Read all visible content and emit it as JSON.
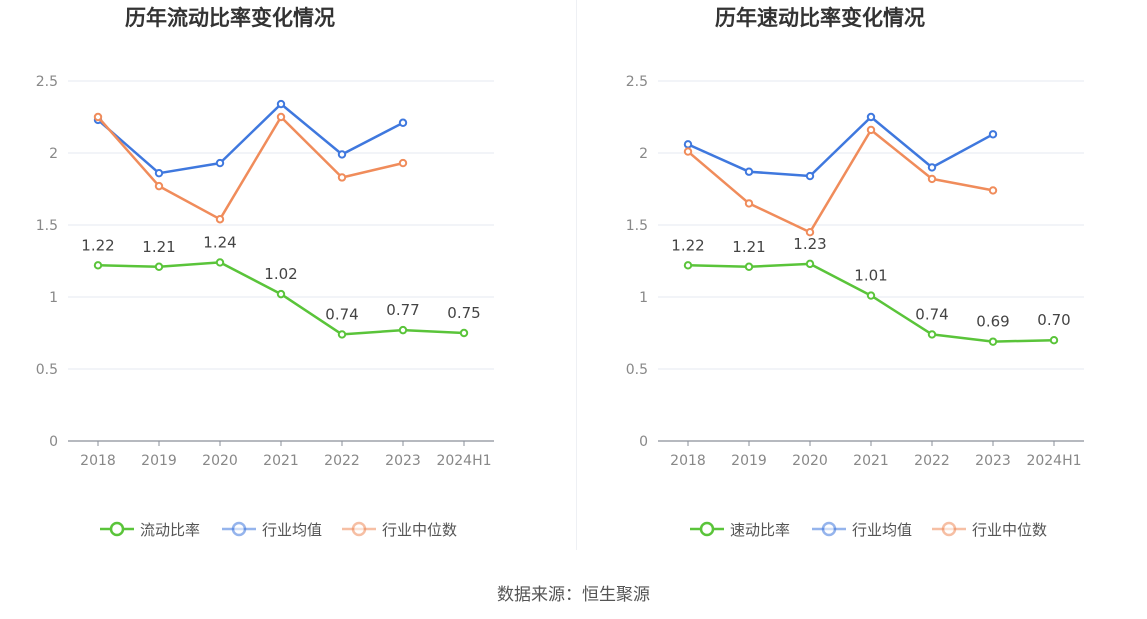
{
  "source": "数据来源：恒生聚源",
  "chart_data": [
    {
      "type": "line",
      "title": "历年流动比率变化情况",
      "categories": [
        "2018",
        "2019",
        "2020",
        "2021",
        "2022",
        "2023",
        "2024H1"
      ],
      "ylim": [
        0,
        2.5
      ],
      "yticks": [
        "0",
        "0.5",
        "1",
        "1.5",
        "2",
        "2.5"
      ],
      "grid": true,
      "legend_position": "bottom",
      "series": [
        {
          "name": "流动比率",
          "color": "#5ac43a",
          "values": [
            1.22,
            1.21,
            1.24,
            1.02,
            0.74,
            0.77,
            0.75
          ],
          "labels": [
            "1.22",
            "1.21",
            "1.24",
            "1.02",
            "0.74",
            "0.77",
            "0.75"
          ]
        },
        {
          "name": "行业均值",
          "color": "#3f78de",
          "values": [
            2.23,
            1.86,
            1.93,
            2.34,
            1.99,
            2.21,
            null
          ]
        },
        {
          "name": "行业中位数",
          "color": "#f08c5b",
          "values": [
            2.25,
            1.77,
            1.54,
            2.25,
            1.83,
            1.93,
            null
          ]
        }
      ]
    },
    {
      "type": "line",
      "title": "历年速动比率变化情况",
      "categories": [
        "2018",
        "2019",
        "2020",
        "2021",
        "2022",
        "2023",
        "2024H1"
      ],
      "ylim": [
        0,
        2.5
      ],
      "yticks": [
        "0",
        "0.5",
        "1",
        "1.5",
        "2",
        "2.5"
      ],
      "grid": true,
      "legend_position": "bottom",
      "series": [
        {
          "name": "速动比率",
          "color": "#5ac43a",
          "values": [
            1.22,
            1.21,
            1.23,
            1.01,
            0.74,
            0.69,
            0.7
          ],
          "labels": [
            "1.22",
            "1.21",
            "1.23",
            "1.01",
            "0.74",
            "0.69",
            "0.70"
          ]
        },
        {
          "name": "行业均值",
          "color": "#3f78de",
          "values": [
            2.06,
            1.87,
            1.84,
            2.25,
            1.9,
            2.13,
            null
          ]
        },
        {
          "name": "行业中位数",
          "color": "#f08c5b",
          "values": [
            2.01,
            1.65,
            1.45,
            2.16,
            1.82,
            1.74,
            null
          ]
        }
      ]
    }
  ]
}
